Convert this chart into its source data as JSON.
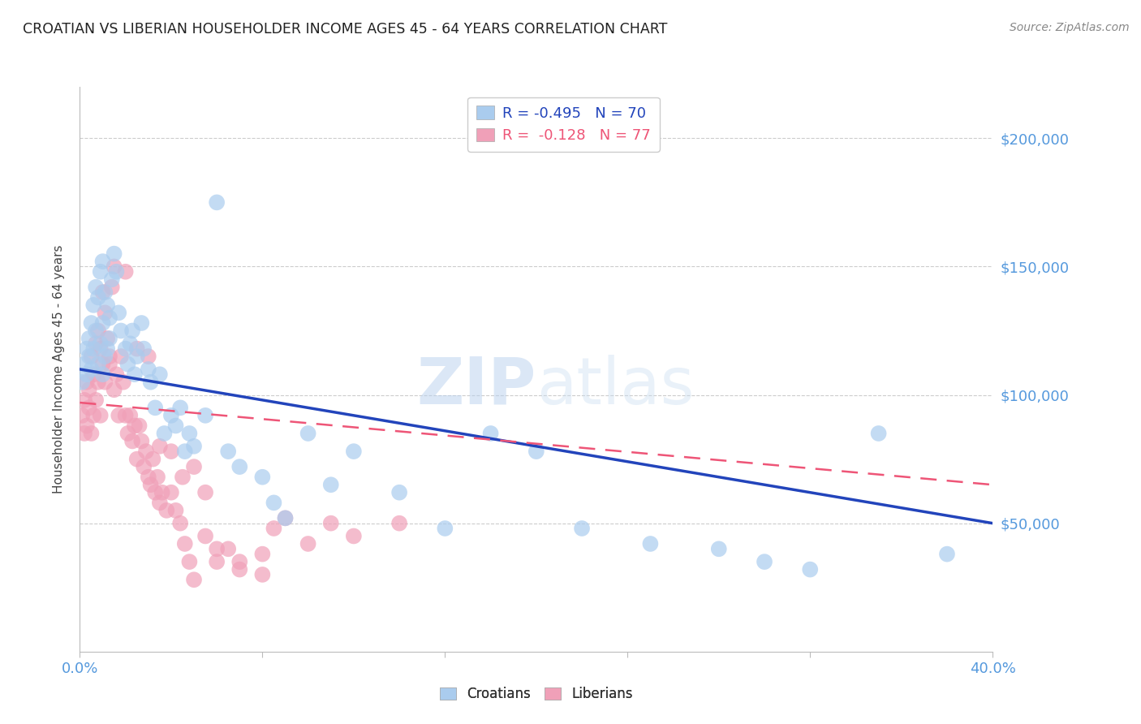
{
  "title": "CROATIAN VS LIBERIAN HOUSEHOLDER INCOME AGES 45 - 64 YEARS CORRELATION CHART",
  "source": "Source: ZipAtlas.com",
  "ylabel": "Householder Income Ages 45 - 64 years",
  "watermark": "ZIPatlas",
  "croatians_label": "Croatians",
  "liberians_label": "Liberians",
  "croatian_R": -0.495,
  "liberian_R": -0.128,
  "croatian_N": 70,
  "liberian_N": 77,
  "x_min": 0.0,
  "x_max": 0.4,
  "y_min": 0,
  "y_max": 220000,
  "y_ticks": [
    50000,
    100000,
    150000,
    200000
  ],
  "y_tick_labels": [
    "$50,000",
    "$100,000",
    "$150,000",
    "$200,000"
  ],
  "x_ticks": [
    0.0,
    0.08,
    0.16,
    0.24,
    0.32,
    0.4
  ],
  "title_color": "#222222",
  "source_color": "#888888",
  "ytick_color": "#5599dd",
  "xtick_color": "#5599dd",
  "background_color": "#ffffff",
  "grid_color": "#cccccc",
  "croatian_dot_color": "#aaccee",
  "liberian_dot_color": "#f0a0b8",
  "croatian_line_color": "#2244bb",
  "liberian_line_color": "#ee5577",
  "croatians_x": [
    0.001,
    0.002,
    0.003,
    0.003,
    0.004,
    0.004,
    0.005,
    0.005,
    0.006,
    0.006,
    0.007,
    0.007,
    0.008,
    0.008,
    0.009,
    0.009,
    0.01,
    0.01,
    0.01,
    0.011,
    0.011,
    0.012,
    0.012,
    0.013,
    0.013,
    0.014,
    0.015,
    0.016,
    0.017,
    0.018,
    0.02,
    0.021,
    0.022,
    0.023,
    0.024,
    0.025,
    0.027,
    0.028,
    0.03,
    0.031,
    0.033,
    0.035,
    0.037,
    0.04,
    0.042,
    0.044,
    0.046,
    0.048,
    0.05,
    0.055,
    0.06,
    0.065,
    0.07,
    0.08,
    0.085,
    0.09,
    0.1,
    0.11,
    0.12,
    0.14,
    0.16,
    0.18,
    0.2,
    0.22,
    0.25,
    0.28,
    0.3,
    0.32,
    0.35,
    0.38
  ],
  "croatians_y": [
    105000,
    112000,
    108000,
    118000,
    122000,
    115000,
    128000,
    110000,
    135000,
    118000,
    142000,
    125000,
    138000,
    112000,
    148000,
    120000,
    152000,
    128000,
    108000,
    140000,
    115000,
    135000,
    118000,
    130000,
    122000,
    145000,
    155000,
    148000,
    132000,
    125000,
    118000,
    112000,
    120000,
    125000,
    108000,
    115000,
    128000,
    118000,
    110000,
    105000,
    95000,
    108000,
    85000,
    92000,
    88000,
    95000,
    78000,
    85000,
    80000,
    92000,
    175000,
    78000,
    72000,
    68000,
    58000,
    52000,
    85000,
    65000,
    78000,
    62000,
    48000,
    85000,
    78000,
    48000,
    42000,
    40000,
    35000,
    32000,
    85000,
    38000
  ],
  "liberians_x": [
    0.001,
    0.002,
    0.002,
    0.003,
    0.003,
    0.004,
    0.004,
    0.005,
    0.005,
    0.006,
    0.006,
    0.007,
    0.007,
    0.008,
    0.008,
    0.009,
    0.009,
    0.01,
    0.01,
    0.011,
    0.011,
    0.012,
    0.013,
    0.013,
    0.014,
    0.015,
    0.016,
    0.017,
    0.018,
    0.019,
    0.02,
    0.021,
    0.022,
    0.023,
    0.024,
    0.025,
    0.026,
    0.027,
    0.028,
    0.029,
    0.03,
    0.031,
    0.032,
    0.033,
    0.034,
    0.035,
    0.036,
    0.038,
    0.04,
    0.042,
    0.044,
    0.046,
    0.048,
    0.05,
    0.055,
    0.06,
    0.065,
    0.07,
    0.08,
    0.085,
    0.09,
    0.1,
    0.11,
    0.12,
    0.14,
    0.015,
    0.02,
    0.025,
    0.03,
    0.035,
    0.04,
    0.045,
    0.05,
    0.055,
    0.06,
    0.07,
    0.08
  ],
  "liberians_y": [
    92000,
    85000,
    98000,
    105000,
    88000,
    102000,
    95000,
    115000,
    85000,
    108000,
    92000,
    120000,
    98000,
    125000,
    105000,
    118000,
    92000,
    112000,
    140000,
    105000,
    132000,
    122000,
    112000,
    115000,
    142000,
    102000,
    108000,
    92000,
    115000,
    105000,
    92000,
    85000,
    92000,
    82000,
    88000,
    75000,
    88000,
    82000,
    72000,
    78000,
    68000,
    65000,
    75000,
    62000,
    68000,
    58000,
    62000,
    55000,
    62000,
    55000,
    50000,
    42000,
    35000,
    28000,
    45000,
    35000,
    40000,
    32000,
    38000,
    48000,
    52000,
    42000,
    50000,
    45000,
    50000,
    150000,
    148000,
    118000,
    115000,
    80000,
    78000,
    68000,
    72000,
    62000,
    40000,
    35000,
    30000
  ]
}
